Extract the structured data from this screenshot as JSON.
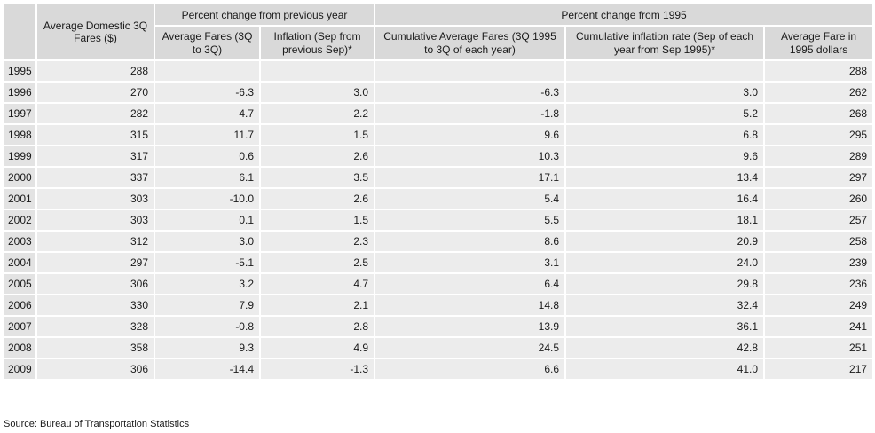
{
  "table": {
    "group_headers": [
      "Percent change from previous year",
      "Percent change from 1995"
    ],
    "columns": [
      "Average Domestic 3Q Fares ($)",
      "Average Fares (3Q to 3Q)",
      "Inflation (Sep from previous Sep)*",
      "Cumulative Average Fares (3Q 1995 to 3Q of each year)",
      "Cumulative inflation rate (Sep of each year from Sep 1995)*",
      "Average Fare in 1995 dollars"
    ],
    "rows": [
      [
        "1995",
        "288",
        null,
        null,
        null,
        null,
        "288"
      ],
      [
        "1996",
        "270",
        "-6.3",
        "3.0",
        "-6.3",
        "3.0",
        "262"
      ],
      [
        "1997",
        "282",
        "4.7",
        "2.2",
        "-1.8",
        "5.2",
        "268"
      ],
      [
        "1998",
        "315",
        "11.7",
        "1.5",
        "9.6",
        "6.8",
        "295"
      ],
      [
        "1999",
        "317",
        "0.6",
        "2.6",
        "10.3",
        "9.6",
        "289"
      ],
      [
        "2000",
        "337",
        "6.1",
        "3.5",
        "17.1",
        "13.4",
        "297"
      ],
      [
        "2001",
        "303",
        "-10.0",
        "2.6",
        "5.4",
        "16.4",
        "260"
      ],
      [
        "2002",
        "303",
        "0.1",
        "1.5",
        "5.5",
        "18.1",
        "257"
      ],
      [
        "2003",
        "312",
        "3.0",
        "2.3",
        "8.6",
        "20.9",
        "258"
      ],
      [
        "2004",
        "297",
        "-5.1",
        "2.5",
        "3.1",
        "24.0",
        "239"
      ],
      [
        "2005",
        "306",
        "3.2",
        "4.7",
        "6.4",
        "29.8",
        "236"
      ],
      [
        "2006",
        "330",
        "7.9",
        "2.1",
        "14.8",
        "32.4",
        "249"
      ],
      [
        "2007",
        "328",
        "-0.8",
        "2.8",
        "13.9",
        "36.1",
        "241"
      ],
      [
        "2008",
        "358",
        "9.3",
        "4.9",
        "24.5",
        "42.8",
        "251"
      ],
      [
        "2009",
        "306",
        "-14.4",
        "-1.3",
        "6.6",
        "41.0",
        "217"
      ]
    ]
  },
  "source": "Source: Bureau of Transportation Statistics"
}
